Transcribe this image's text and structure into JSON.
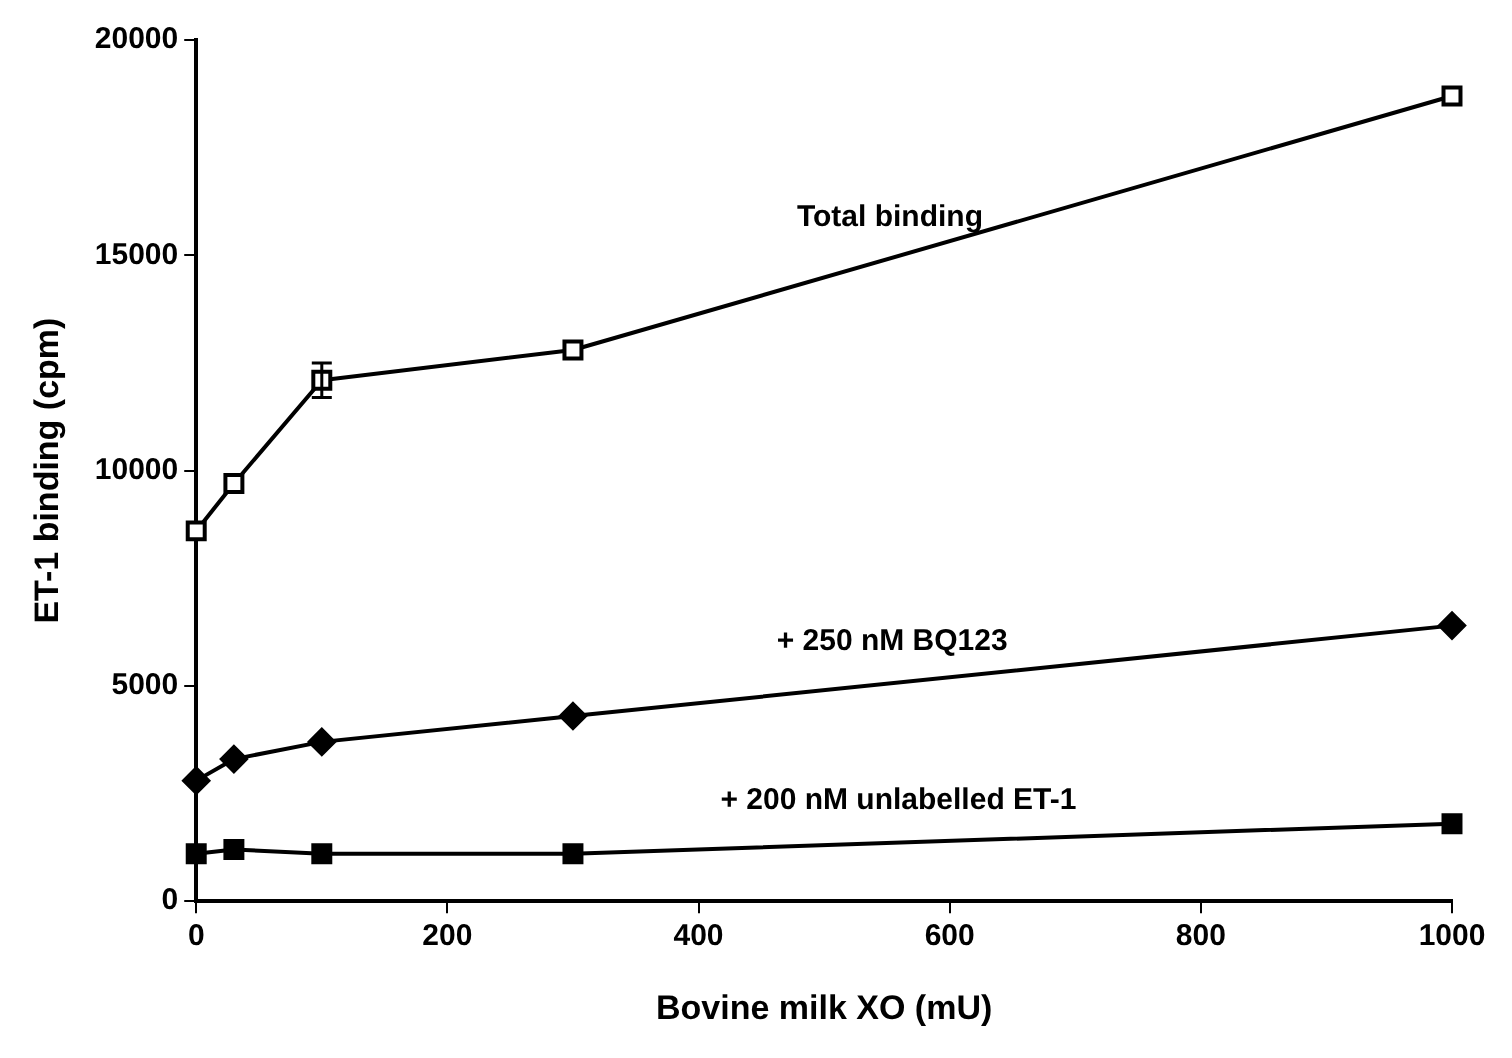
{
  "chart_data": {
    "type": "line",
    "xlabel": "Bovine milk XO (mU)",
    "ylabel": "ET-1 binding (cpm)",
    "x": [
      0,
      30,
      100,
      300,
      1000
    ],
    "series": [
      {
        "name": "Total binding",
        "color": "#000000",
        "marker": "square",
        "values": [
          8600,
          9700,
          12100,
          12800,
          18700
        ],
        "errors": [
          null,
          null,
          400,
          null,
          null
        ]
      },
      {
        "name": "+ 250 nM BQ123",
        "color": "#000000",
        "marker": "diamond",
        "values": [
          2800,
          3300,
          3700,
          4300,
          6400
        ]
      },
      {
        "name": "+ 200 nM unlabelled ET-1",
        "color": "#000000",
        "marker": "square",
        "values": [
          1100,
          1200,
          1100,
          1100,
          1800
        ]
      }
    ],
    "xlim": [
      0,
      1000
    ],
    "xticks": [
      0,
      200,
      400,
      600,
      800,
      1000
    ],
    "ylim": [
      0,
      20000
    ],
    "yticks": [
      0,
      5000,
      10000,
      15000,
      20000
    ],
    "grid": false,
    "legend": false
  }
}
